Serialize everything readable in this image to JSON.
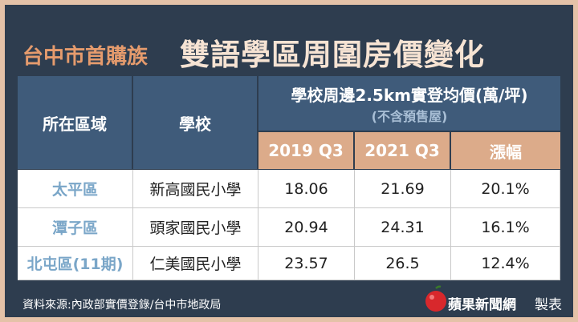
{
  "header": {
    "title_prefix": "台中市首購族",
    "title_main": "雙語學區周圍房價變化"
  },
  "table": {
    "columns": [
      "所在區域",
      "學校"
    ],
    "price_group": {
      "title": "學校周邊2.5km實登均價(萬/坪)",
      "note": "(不含預售屋)",
      "columns": [
        "2019 Q3",
        "2021 Q3",
        "漲幅"
      ]
    },
    "rows": [
      [
        "太平區",
        "新高國民小學",
        "18.06",
        "21.69",
        "20.1%"
      ],
      [
        "潭子區",
        "頭家國民小學",
        "20.94",
        "24.31",
        "16.1%"
      ],
      [
        "北屯區(11期)",
        "仁美國民小學",
        "23.57",
        "26.5",
        "12.4%"
      ]
    ]
  },
  "footer": {
    "source": "資料來源:內政部實價登錄/台中市地政局",
    "brand": "蘋果新聞網",
    "suffix": "製表"
  }
}
